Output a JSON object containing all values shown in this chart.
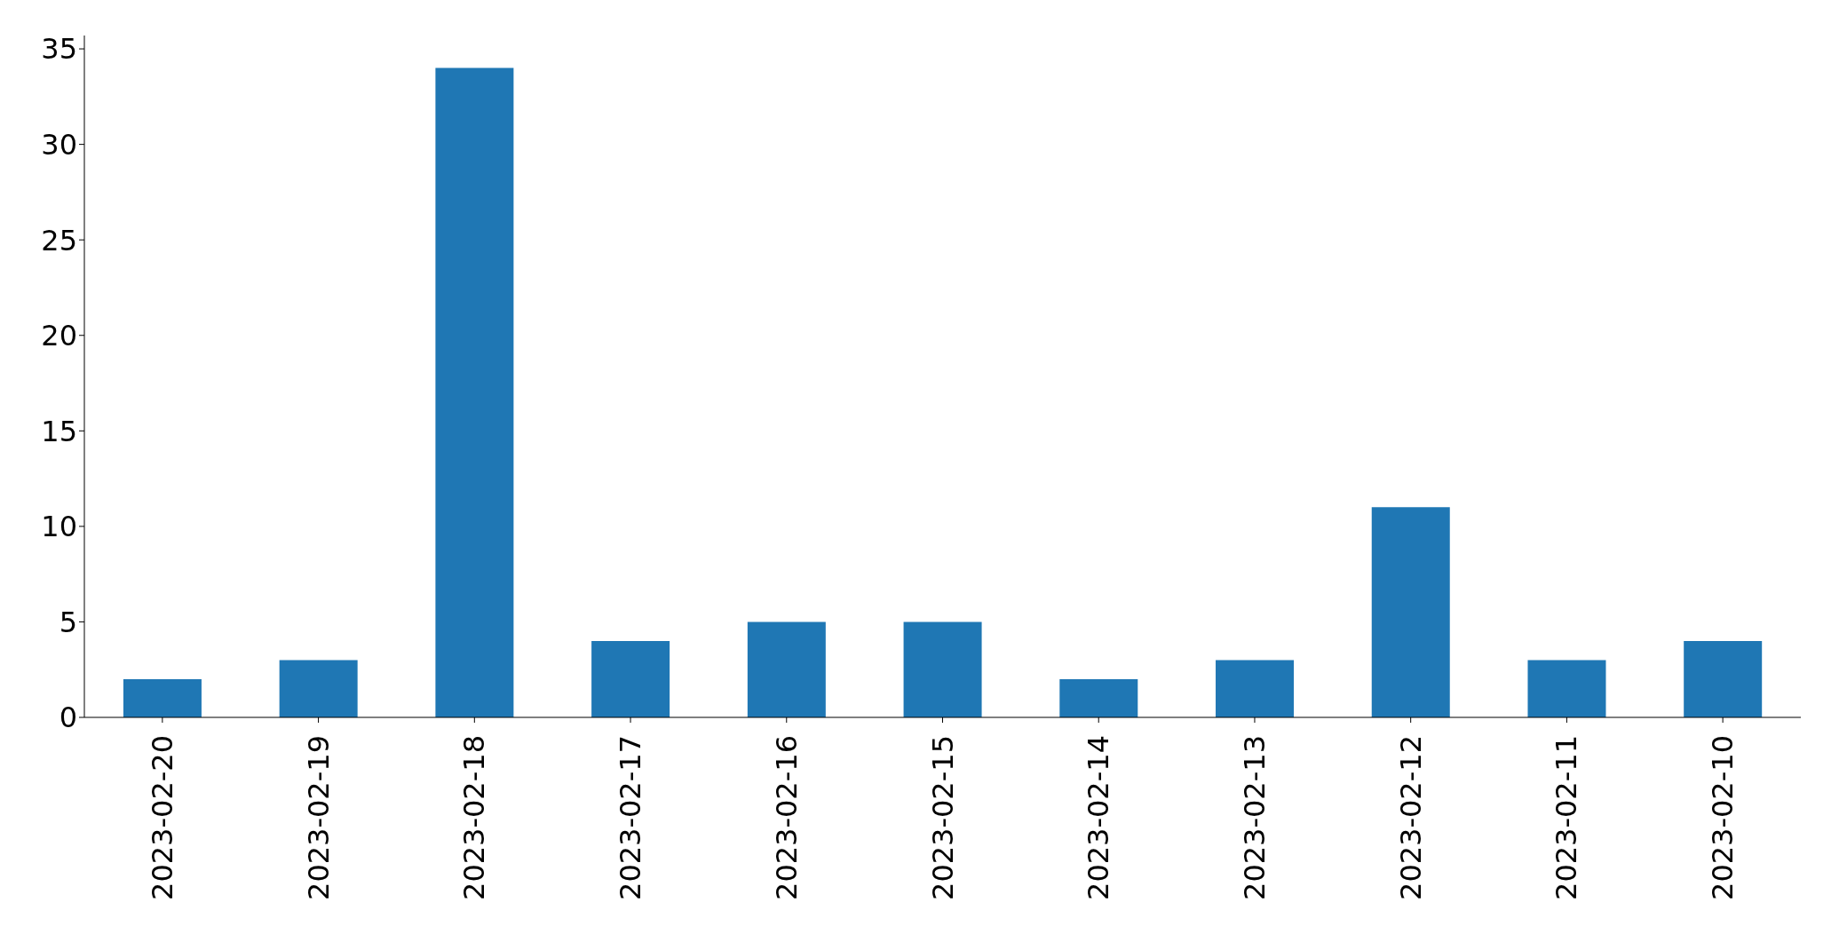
{
  "chart_data": {
    "type": "bar",
    "categories": [
      "2023-02-20",
      "2023-02-19",
      "2023-02-18",
      "2023-02-17",
      "2023-02-16",
      "2023-02-15",
      "2023-02-14",
      "2023-02-13",
      "2023-02-12",
      "2023-02-11",
      "2023-02-10"
    ],
    "values": [
      2,
      3,
      34,
      4,
      5,
      5,
      2,
      3,
      11,
      3,
      4
    ],
    "color": "#1f77b4",
    "ylim": [
      0,
      35.7
    ],
    "yticks": [
      0,
      5,
      10,
      15,
      20,
      25,
      30,
      35
    ]
  }
}
